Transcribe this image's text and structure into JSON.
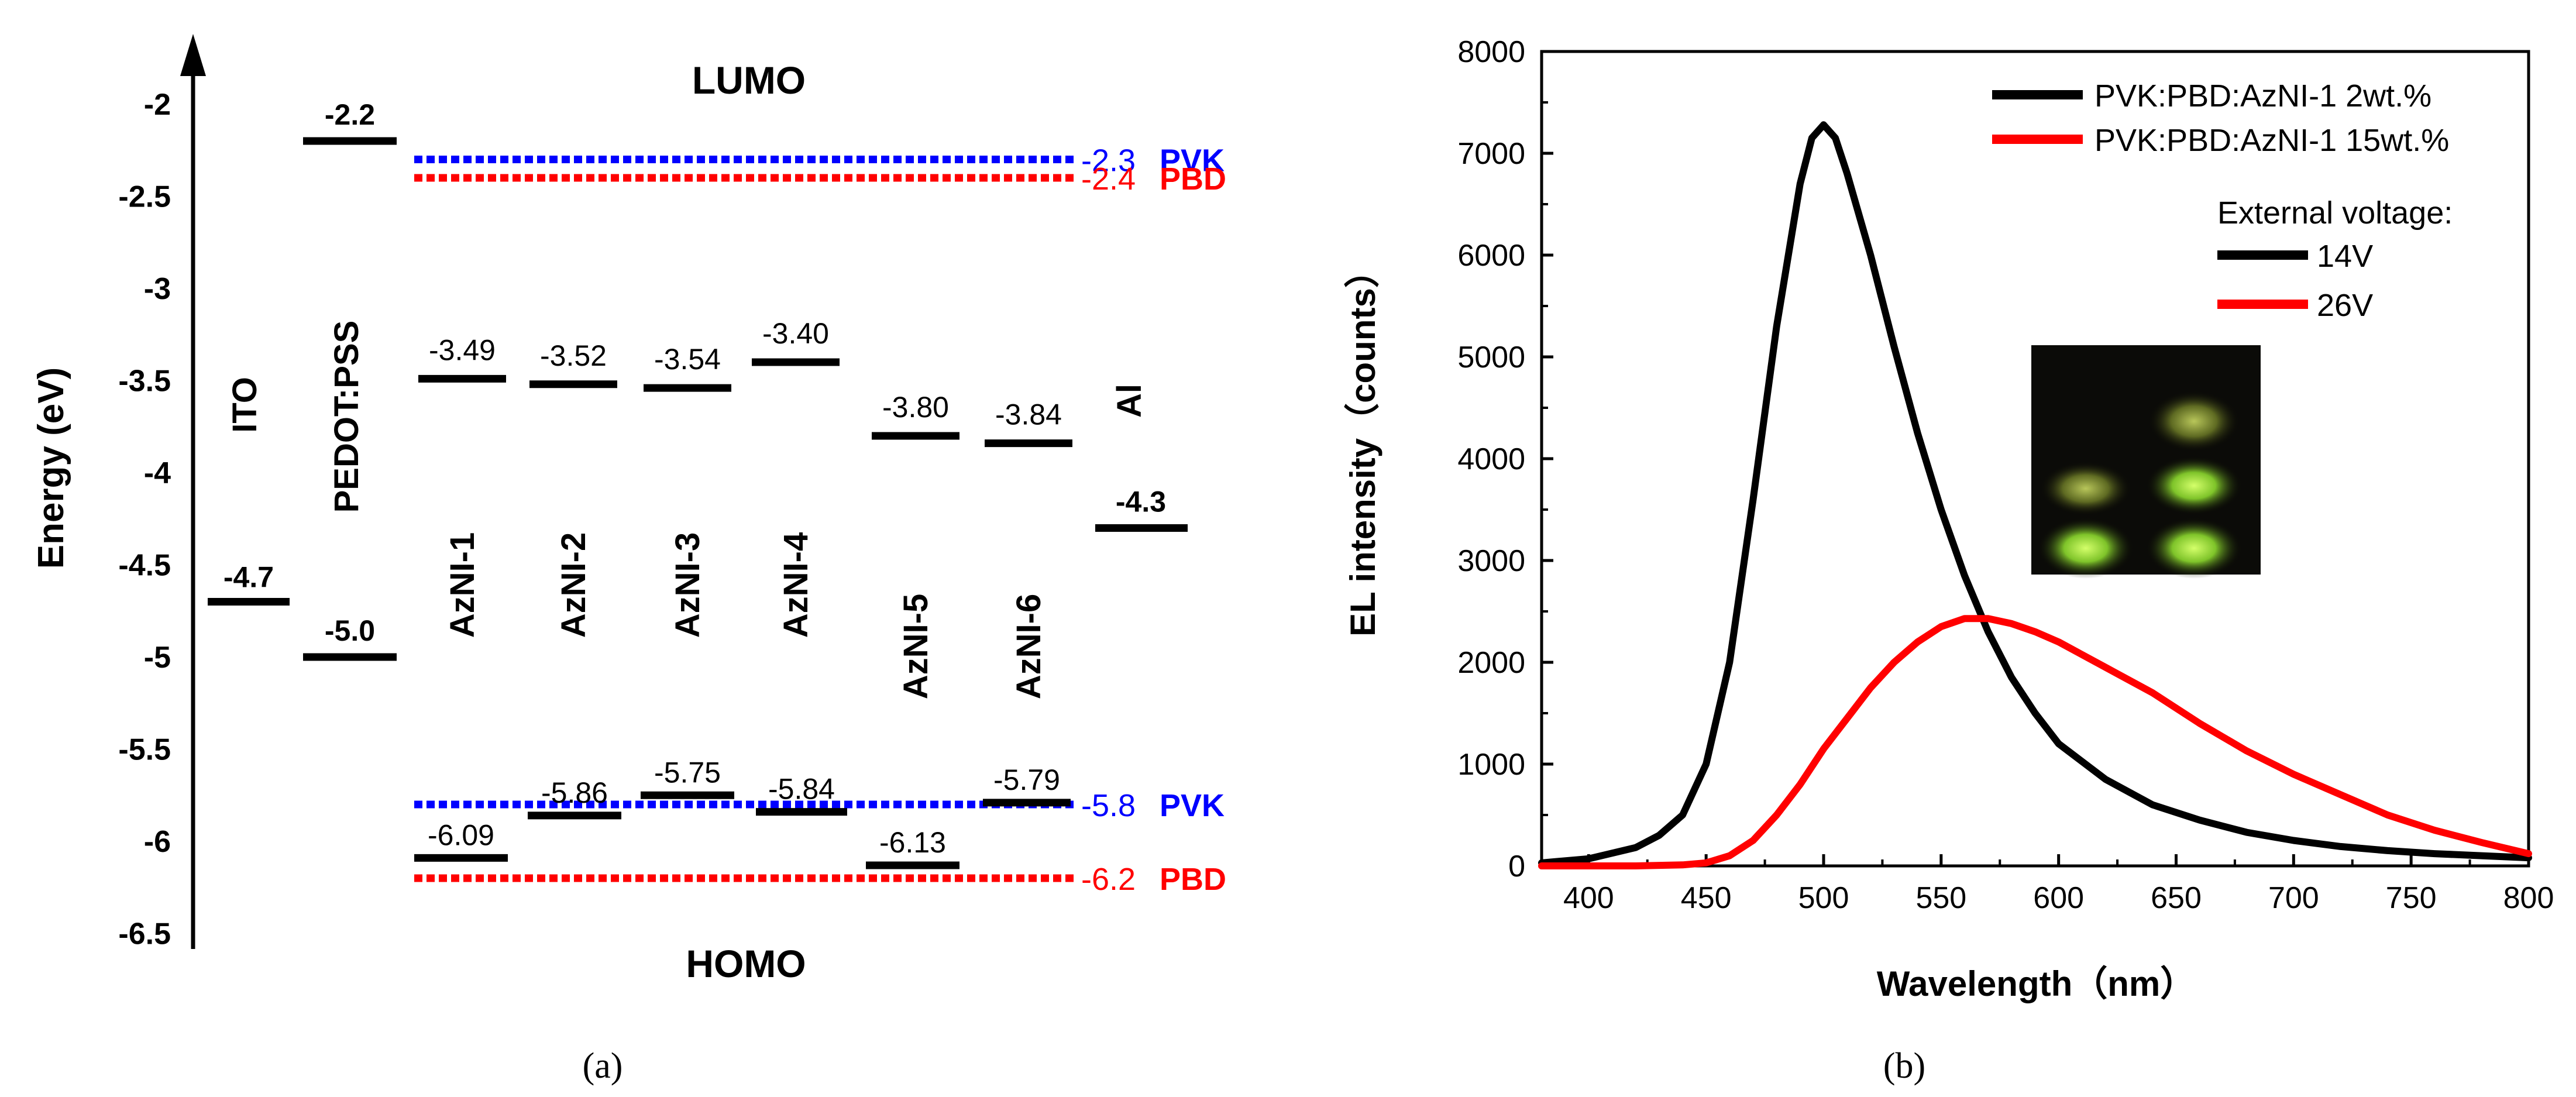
{
  "chart_data": [
    {
      "type": "diagram",
      "panel_label": "(a)",
      "ylabel": "Energy (eV)",
      "ylim": [
        -6.5,
        -1.8
      ],
      "yticks": [
        -2,
        -2.5,
        -3,
        -3.5,
        -4,
        -4.5,
        -5,
        -5.5,
        -6,
        -6.5
      ],
      "lumo_label": "LUMO",
      "homo_label": "HOMO",
      "electrodes": [
        {
          "name": "ITO",
          "level": -4.7,
          "label": "-4.7"
        },
        {
          "name": "PEDOT:PSS",
          "upper": -2.2,
          "upper_label": "-2.2",
          "lower": -5.0,
          "lower_label": "-5.0"
        },
        {
          "name": "Al",
          "level": -4.3,
          "label": "-4.3"
        }
      ],
      "materials": [
        {
          "name": "AzNI-1",
          "lumo": -3.49,
          "lumo_label": "-3.49",
          "homo": -6.09,
          "homo_label": "-6.09"
        },
        {
          "name": "AzNI-2",
          "lumo": -3.52,
          "lumo_label": "-3.52",
          "homo": -5.86,
          "homo_label": "-5.86"
        },
        {
          "name": "AzNI-3",
          "lumo": -3.54,
          "lumo_label": "-3.54",
          "homo": -5.75,
          "homo_label": "-5.75"
        },
        {
          "name": "AzNI-4",
          "lumo": -3.4,
          "lumo_label": "-3.40",
          "homo": -5.84,
          "homo_label": "-5.84"
        },
        {
          "name": "AzNI-5",
          "lumo": -3.8,
          "lumo_label": "-3.80",
          "homo": -6.13,
          "homo_label": "-6.13"
        },
        {
          "name": "AzNI-6",
          "lumo": -3.84,
          "lumo_label": "-3.84",
          "homo": -5.79,
          "homo_label": "-5.79"
        }
      ],
      "host_levels": [
        {
          "name": "PVK",
          "level": -2.3,
          "label": "-2.3",
          "color": "#0000ff"
        },
        {
          "name": "PBD",
          "level": -2.4,
          "label": "-2.4",
          "color": "#ff0000"
        },
        {
          "name": "PVK",
          "level": -5.8,
          "label": "-5.8",
          "color": "#0000ff"
        },
        {
          "name": "PBD",
          "level": -6.2,
          "label": "-6.2",
          "color": "#ff0000"
        }
      ]
    },
    {
      "type": "line",
      "panel_label": "(b)",
      "xlabel": "Wavelength（nm）",
      "ylabel": "EL intensity（counts）",
      "xlim": [
        380,
        800
      ],
      "ylim": [
        0,
        8000
      ],
      "xticks": [
        400,
        450,
        500,
        550,
        600,
        650,
        700,
        750,
        800
      ],
      "yticks": [
        0,
        1000,
        2000,
        3000,
        4000,
        5000,
        6000,
        7000,
        8000
      ],
      "legend_position": "top-right",
      "series": [
        {
          "name": "PVK:PBD:AzNI-1 2wt.%",
          "color": "#000000",
          "x": [
            380,
            400,
            420,
            430,
            440,
            450,
            460,
            470,
            480,
            490,
            495,
            500,
            505,
            510,
            520,
            530,
            540,
            550,
            560,
            570,
            580,
            590,
            600,
            620,
            640,
            660,
            680,
            700,
            720,
            740,
            760,
            780,
            800
          ],
          "y": [
            30,
            70,
            180,
            300,
            500,
            1000,
            2000,
            3600,
            5300,
            6700,
            7150,
            7280,
            7150,
            6800,
            6000,
            5100,
            4250,
            3500,
            2850,
            2300,
            1850,
            1500,
            1200,
            850,
            600,
            450,
            330,
            250,
            190,
            150,
            120,
            100,
            80
          ]
        },
        {
          "name": "PVK:PBD:AzNI-1 15wt.%",
          "color": "#ff0000",
          "x": [
            380,
            420,
            440,
            450,
            460,
            470,
            480,
            490,
            500,
            510,
            520,
            530,
            540,
            550,
            560,
            570,
            580,
            590,
            600,
            620,
            640,
            660,
            680,
            700,
            720,
            740,
            760,
            780,
            800
          ],
          "y": [
            0,
            0,
            10,
            30,
            100,
            250,
            500,
            800,
            1150,
            1450,
            1750,
            2000,
            2200,
            2350,
            2430,
            2430,
            2380,
            2300,
            2200,
            1950,
            1700,
            1400,
            1130,
            900,
            700,
            500,
            350,
            230,
            120
          ]
        }
      ],
      "legend_note_title": "External voltage:",
      "legend_note_entries": [
        {
          "label": "14V",
          "color": "#000000"
        },
        {
          "label": "26V",
          "color": "#ff0000"
        }
      ]
    }
  ]
}
